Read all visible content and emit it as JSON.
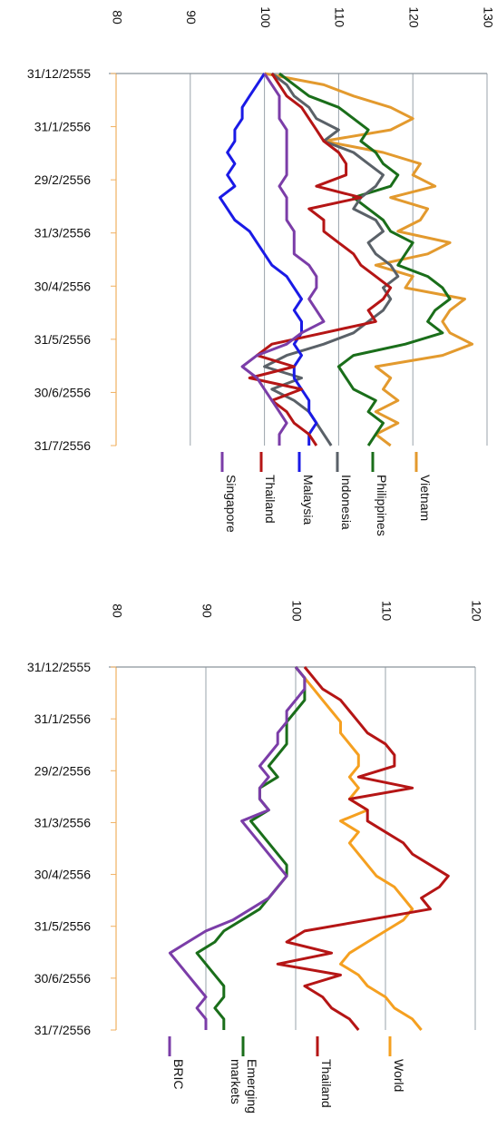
{
  "chart_data": [
    {
      "type": "line",
      "orientation": "rotated-90-clockwise",
      "x_ticks": [
        "31/12/2555",
        "31/1/2556",
        "29/2/2556",
        "31/3/2556",
        "30/4/2556",
        "31/5/2556",
        "30/6/2556",
        "31/7/2556"
      ],
      "y_ticks": [
        80,
        90,
        100,
        110,
        120,
        130
      ],
      "ylim": [
        80,
        130
      ],
      "grid": true,
      "legend_position": "bottom",
      "series": [
        {
          "name": "Vietnam",
          "color": "#E39A2E",
          "values": [
            100,
            108,
            112,
            117,
            120,
            117,
            108,
            116,
            121,
            120,
            123,
            117,
            122,
            121,
            118,
            125,
            122,
            115,
            120,
            119,
            127,
            125,
            124,
            125,
            128,
            124,
            115,
            117,
            116,
            118,
            115,
            118,
            115,
            117
          ]
        },
        {
          "name": "Philippines",
          "color": "#1A6E1A",
          "values": [
            102,
            104,
            106,
            110,
            112,
            114,
            113,
            115,
            116,
            118,
            117,
            112,
            114,
            116,
            117,
            120,
            119,
            118,
            122,
            124,
            125,
            123,
            122,
            124,
            119,
            112,
            110,
            111,
            112,
            115,
            114,
            116,
            115,
            114
          ]
        },
        {
          "name": "Indonesia",
          "color": "#5A6168",
          "values": [
            101,
            103,
            104,
            106,
            107,
            110,
            108,
            112,
            114,
            116,
            115,
            113,
            112,
            115,
            116,
            114,
            115,
            117,
            118,
            116,
            117,
            116,
            114,
            112,
            108,
            103,
            100,
            105,
            101,
            104,
            106,
            107,
            108,
            109
          ]
        },
        {
          "name": "Malaysia",
          "color": "#1A1AE6",
          "values": [
            100,
            99,
            98,
            97,
            97,
            96,
            96,
            95,
            96,
            95,
            96,
            94,
            95,
            96,
            98,
            99,
            100,
            101,
            103,
            104,
            105,
            104,
            105,
            105,
            104,
            105,
            104,
            104,
            105,
            106,
            106,
            107,
            106,
            106
          ]
        },
        {
          "name": "Thailand",
          "color": "#B51515",
          "values": [
            101,
            102,
            103,
            105,
            106,
            107,
            108,
            110,
            111,
            111,
            107,
            113,
            106,
            108,
            108,
            110,
            112,
            113,
            115,
            117,
            116,
            114,
            115,
            108,
            101,
            99,
            104,
            98,
            105,
            101,
            103,
            104,
            106,
            107
          ]
        },
        {
          "name": "Singapore",
          "color": "#7B3DA8",
          "values": [
            100,
            101,
            102,
            102,
            102,
            103,
            103,
            103,
            103,
            103,
            102,
            103,
            103,
            103,
            104,
            104,
            104,
            106,
            107,
            107,
            106,
            107,
            108,
            105,
            103,
            99,
            97,
            99,
            100,
            101,
            102,
            103,
            102,
            102
          ]
        }
      ]
    },
    {
      "type": "line",
      "orientation": "rotated-90-clockwise",
      "x_ticks": [
        "31/12/2555",
        "31/1/2556",
        "29/2/2556",
        "31/3/2556",
        "30/4/2556",
        "31/5/2556",
        "30/6/2556",
        "31/7/2556"
      ],
      "y_ticks": [
        80,
        90,
        100,
        110,
        120
      ],
      "ylim": [
        80,
        120
      ],
      "grid": true,
      "legend_position": "bottom",
      "series": [
        {
          "name": "World",
          "color": "#F5A020",
          "values": [
            100,
            101,
            102,
            103,
            104,
            105,
            105,
            106,
            107,
            107,
            106,
            107,
            106,
            108,
            105,
            107,
            106,
            107,
            108,
            109,
            111,
            112,
            113,
            112,
            110,
            108,
            106,
            105,
            107,
            108,
            110,
            111,
            113,
            114
          ]
        },
        {
          "name": "Thailand",
          "color": "#B51515",
          "values": [
            101,
            102,
            103,
            105,
            106,
            107,
            108,
            110,
            111,
            111,
            107,
            113,
            106,
            108,
            108,
            110,
            112,
            113,
            115,
            117,
            116,
            114,
            115,
            108,
            101,
            99,
            104,
            98,
            105,
            101,
            103,
            104,
            106,
            107
          ]
        },
        {
          "name": "Emerging markets",
          "color": "#1A6E1A",
          "values": [
            100,
            101,
            101,
            101,
            100,
            99,
            99,
            99,
            98,
            97,
            98,
            96,
            96,
            97,
            95,
            96,
            97,
            98,
            99,
            99,
            98,
            97,
            96,
            94,
            92,
            91,
            89,
            90,
            91,
            92,
            92,
            91,
            92,
            92
          ]
        },
        {
          "name": "BRIC",
          "color": "#7B3DA8",
          "values": [
            100,
            101,
            101,
            100,
            99,
            99,
            98,
            98,
            97,
            96,
            97,
            96,
            96,
            97,
            94,
            95,
            96,
            97,
            98,
            99,
            98,
            97,
            95,
            93,
            90,
            88,
            86,
            87,
            88,
            89,
            90,
            89,
            90,
            90
          ]
        }
      ]
    }
  ],
  "legend_text": {
    "chart1": [
      "Vietnam",
      "Philippines",
      "Indonesia",
      "Malaysia",
      "Thailand",
      "Singapore"
    ],
    "chart2": [
      [
        "World"
      ],
      [
        "Thailand"
      ],
      [
        "Emerging",
        "markets"
      ],
      [
        "BRIC"
      ]
    ]
  }
}
